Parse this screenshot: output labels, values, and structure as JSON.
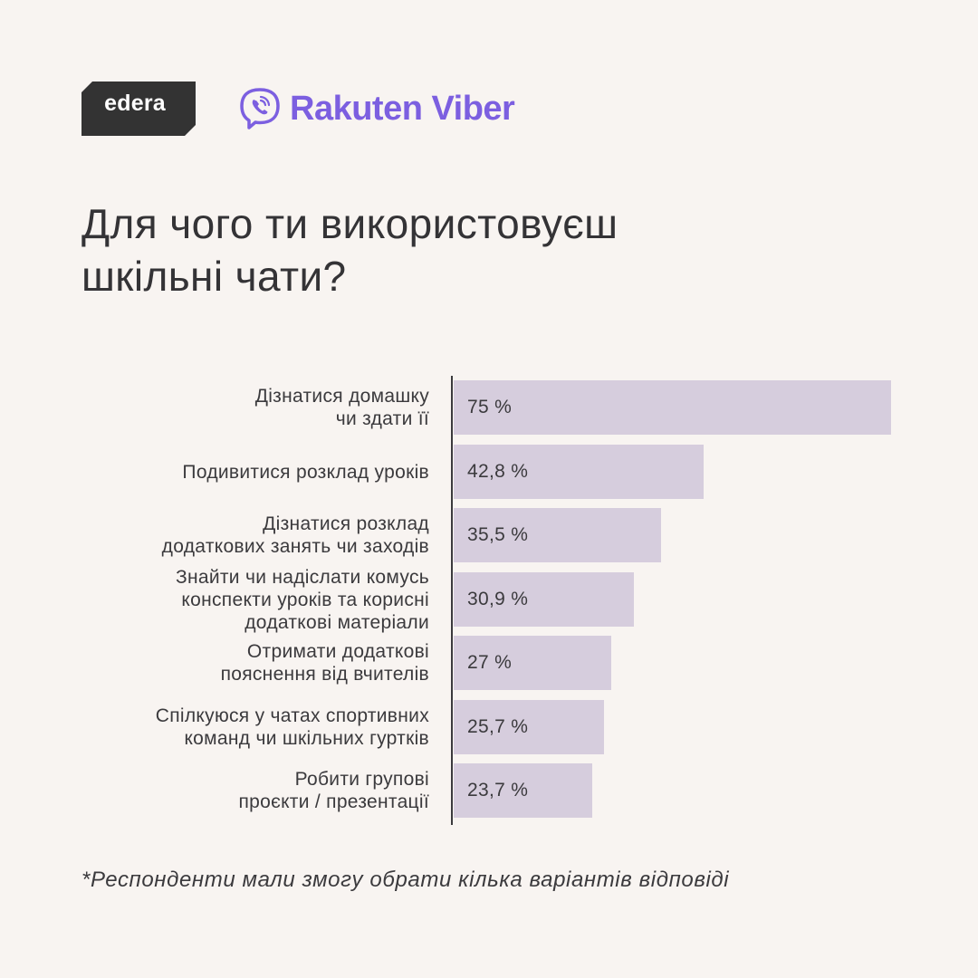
{
  "logos": {
    "edera": "edera",
    "viber": "Rakuten Viber"
  },
  "title": "Для чого ти використовуєш\nшкільні чати?",
  "chart_data": {
    "type": "bar",
    "orientation": "horizontal",
    "unit": "%",
    "xlim": [
      0,
      75
    ],
    "categories": [
      "Дізнатися домашку\nчи здати її",
      "Подивитися розклад уроків",
      "Дізнатися розклад\nдодаткових занять чи заходів",
      "Знайти чи надіслати комусь\nконспекти уроків та корисні\nдодаткові матеріали",
      "Отримати додаткові\nпояснення від вчителів",
      "Спілкуюся у чатах спортивних\nкоманд чи шкільних гуртків",
      "Робити групові\nпроєкти / презентації"
    ],
    "values": [
      75,
      42.8,
      35.5,
      30.9,
      27,
      25.7,
      23.7
    ],
    "value_labels": [
      "75 %",
      "42,8 %",
      "35,5 %",
      "30,9 %",
      "27 %",
      "25,7 %",
      "23,7 %"
    ],
    "bar_color": "#d6cddd",
    "axis_color": "#3b3a3d"
  },
  "footnote": "*Респонденти мали змогу обрати кілька варіантів відповіді",
  "colors": {
    "background": "#f8f4f1",
    "text": "#3b3a3d",
    "edera_logo": "#333333",
    "viber_brand": "#7c5fe0"
  }
}
